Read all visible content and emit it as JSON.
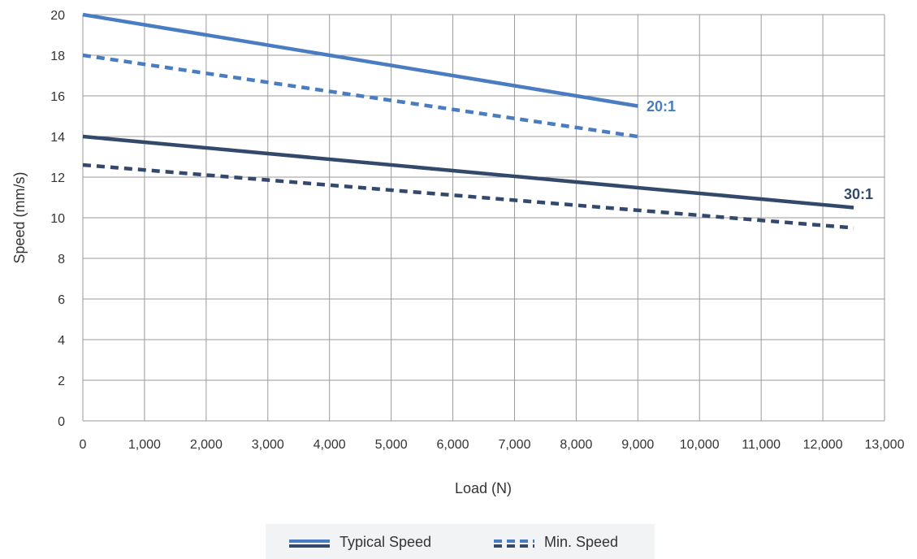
{
  "chart_data": {
    "type": "line",
    "xlabel": "Load (N)",
    "ylabel": "Speed (mm/s)",
    "xlim": [
      0,
      13000
    ],
    "ylim": [
      0,
      20
    ],
    "xticks": [
      "0",
      "1,000",
      "2,000",
      "3,000",
      "4,000",
      "5,000",
      "6,000",
      "7,000",
      "8,000",
      "9,000",
      "10,000",
      "11,000",
      "12,000",
      "13,000"
    ],
    "yticks": [
      "0",
      "2",
      "4",
      "6",
      "8",
      "10",
      "12",
      "14",
      "16",
      "18",
      "20"
    ],
    "grid": true,
    "series": [
      {
        "ratio": "20:1",
        "kind": "Typical Speed",
        "style": "solid",
        "color": "#4a7cc1",
        "x": [
          0,
          9000
        ],
        "y": [
          20,
          15.5
        ]
      },
      {
        "ratio": "20:1",
        "kind": "Min. Speed",
        "style": "dashed",
        "color": "#4a7cc1",
        "x": [
          0,
          9000
        ],
        "y": [
          18,
          14
        ]
      },
      {
        "ratio": "30:1",
        "kind": "Typical Speed",
        "style": "solid",
        "color": "#33496b",
        "x": [
          0,
          12500
        ],
        "y": [
          14,
          10.5
        ]
      },
      {
        "ratio": "30:1",
        "kind": "Min. Speed",
        "style": "dashed",
        "color": "#33496b",
        "x": [
          0,
          12500
        ],
        "y": [
          12.6,
          9.5
        ]
      }
    ],
    "annotations": [
      {
        "text": "20:1",
        "color": "#4a7cc1"
      },
      {
        "text": "30:1",
        "color": "#33496b"
      }
    ],
    "legend": {
      "position": "bottom-center",
      "items": [
        {
          "label": "Typical Speed",
          "style": "solid"
        },
        {
          "label": "Min. Speed",
          "style": "dashed"
        }
      ]
    }
  }
}
